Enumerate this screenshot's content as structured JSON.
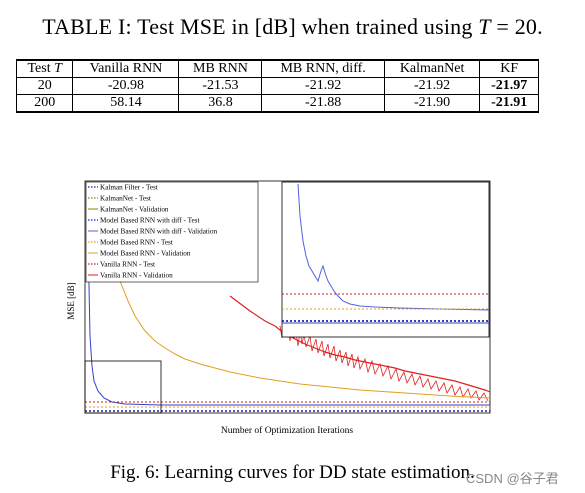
{
  "table": {
    "title_prefix": "TABLE I: Test MSE in [dB] when trained using ",
    "title_var": "T",
    "title_suffix": " = 20.",
    "headers": [
      "Test T",
      "Vanilla RNN",
      "MB RNN",
      "MB RNN, diff.",
      "KalmanNet",
      "KF"
    ],
    "rows": [
      [
        "20",
        "-20.98",
        "-21.53",
        "-21.92",
        "-21.92",
        "-21.97"
      ],
      [
        "200",
        "58.14",
        "36.8",
        "-21.88",
        "-21.90",
        "-21.91"
      ]
    ]
  },
  "figure": {
    "ylabel": "MSE [dB]",
    "xlabel": "Number of Optimization Iterations",
    "legend": [
      {
        "label": "Kalman Filter - Test",
        "color": "#1f1fb4",
        "dash": "dotted"
      },
      {
        "label": "KalmanNet - Test",
        "color": "#8a8a00",
        "dash": "dotted"
      },
      {
        "label": "KalmanNet - Validation",
        "color": "#8a8a00",
        "dash": "solid"
      },
      {
        "label": "Model Based RNN with diff - Test",
        "color": "#2020c0",
        "dash": "dotted"
      },
      {
        "label": "Model Based RNN with diff - Validation",
        "color": "#5060e0",
        "dash": "solid"
      },
      {
        "label": "Model Based RNN - Test",
        "color": "#e0a020",
        "dash": "dotted"
      },
      {
        "label": "Model Based RNN - Validation",
        "color": "#e0a020",
        "dash": "solid"
      },
      {
        "label": "Vanilla RNN - Test",
        "color": "#d02020",
        "dash": "dotted"
      },
      {
        "label": "Vanilla RNN - Validation",
        "color": "#e02020",
        "dash": "solid"
      }
    ]
  },
  "caption": "Fig. 6: Learning curves for DD state estimation.",
  "watermark": "CSDN @谷子君"
}
